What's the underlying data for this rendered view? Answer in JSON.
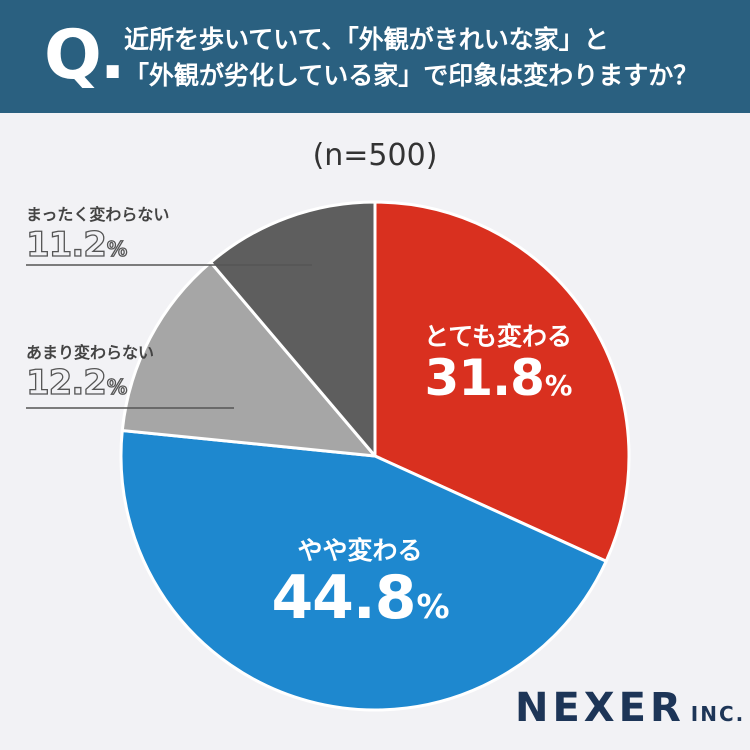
{
  "header": {
    "q_mark": "Q.",
    "question_line1": "近所を歩いていて、「外観がきれいな家」と",
    "question_line2": "「外観が劣化している家」で印象は変わりますか？"
  },
  "chart_data": {
    "type": "pie",
    "subtitle": "(n=500)",
    "start_angle_deg": 0,
    "direction": "clockwise",
    "slices": [
      {
        "label": "とても変わる",
        "value": 31.8,
        "display": "31.8",
        "unit": "%",
        "color": "#d9301f"
      },
      {
        "label": "やや変わる",
        "value": 44.8,
        "display": "44.8",
        "unit": "%",
        "color": "#1e88cf"
      },
      {
        "label": "あまり変わらない",
        "value": 12.2,
        "display": "12.2",
        "unit": "%",
        "color": "#a6a6a6"
      },
      {
        "label": "まったく変わらない",
        "value": 11.2,
        "display": "11.2",
        "unit": "%",
        "color": "#5e5e5e"
      }
    ]
  },
  "logo": {
    "main": "NEXER",
    "sub": "INC."
  }
}
